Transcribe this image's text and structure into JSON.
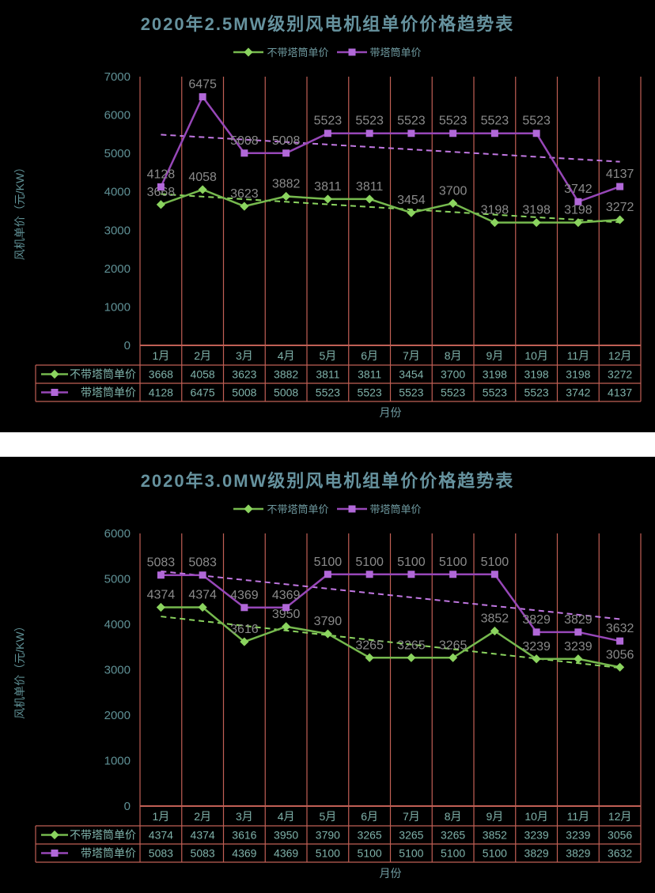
{
  "colors": {
    "page_bg": "#ffffff",
    "panel_bg": "#000000",
    "grid": "#c05f55",
    "axis_line": "#c05f55",
    "tick_text": "#5f9095",
    "title_text": "#66929e",
    "legend_text": "#6f9aa0",
    "table_text": "#7fb2aa",
    "data_label": "#8a8a8a"
  },
  "chart_data": [
    {
      "type": "line",
      "title": "2020年2.5MW级别风电机组单价价格趋势表",
      "xlabel": "月份",
      "ylabel": "风机单价（元/KW）",
      "ylim": [
        0,
        7000
      ],
      "y_step": 1000,
      "grid": "vertical-only",
      "legend_position": "top",
      "trendlines": true,
      "categories": [
        "1月",
        "2月",
        "3月",
        "4月",
        "5月",
        "6月",
        "7月",
        "8月",
        "9月",
        "10月",
        "11月",
        "12月"
      ],
      "series": [
        {
          "name": "不带塔筒单价",
          "marker": "diamond",
          "color": "#76b94e",
          "marker_color": "#8bd45f",
          "trend_color": "#8bd45f",
          "values": [
            3668,
            4058,
            3623,
            3882,
            3811,
            3811,
            3454,
            3700,
            3198,
            3198,
            3198,
            3272
          ]
        },
        {
          "name": "带塔筒单价",
          "marker": "square",
          "color": "#9747b8",
          "marker_color": "#b168d8",
          "trend_color": "#c177e2",
          "values": [
            4128,
            6475,
            5008,
            5008,
            5523,
            5523,
            5523,
            5523,
            5523,
            5523,
            3742,
            4137
          ]
        }
      ]
    },
    {
      "type": "line",
      "title": "2020年3.0MW级别风电机组单价价格趋势表",
      "xlabel": "月份",
      "ylabel": "风机单价（元/KW）",
      "ylim": [
        0,
        6000
      ],
      "y_step": 1000,
      "grid": "vertical-only",
      "legend_position": "top",
      "trendlines": true,
      "categories": [
        "1月",
        "2月",
        "3月",
        "4月",
        "5月",
        "6月",
        "7月",
        "8月",
        "9月",
        "10月",
        "11月",
        "12月"
      ],
      "series": [
        {
          "name": "不带塔筒单价",
          "marker": "diamond",
          "color": "#76b94e",
          "marker_color": "#8bd45f",
          "trend_color": "#8bd45f",
          "values": [
            4374,
            4374,
            3616,
            3950,
            3790,
            3265,
            3265,
            3265,
            3852,
            3239,
            3239,
            3056
          ]
        },
        {
          "name": "带塔筒单价",
          "marker": "square",
          "color": "#9747b8",
          "marker_color": "#b168d8",
          "trend_color": "#c177e2",
          "values": [
            5083,
            5083,
            4369,
            4369,
            5100,
            5100,
            5100,
            5100,
            5100,
            3829,
            3829,
            3632
          ]
        }
      ]
    }
  ]
}
